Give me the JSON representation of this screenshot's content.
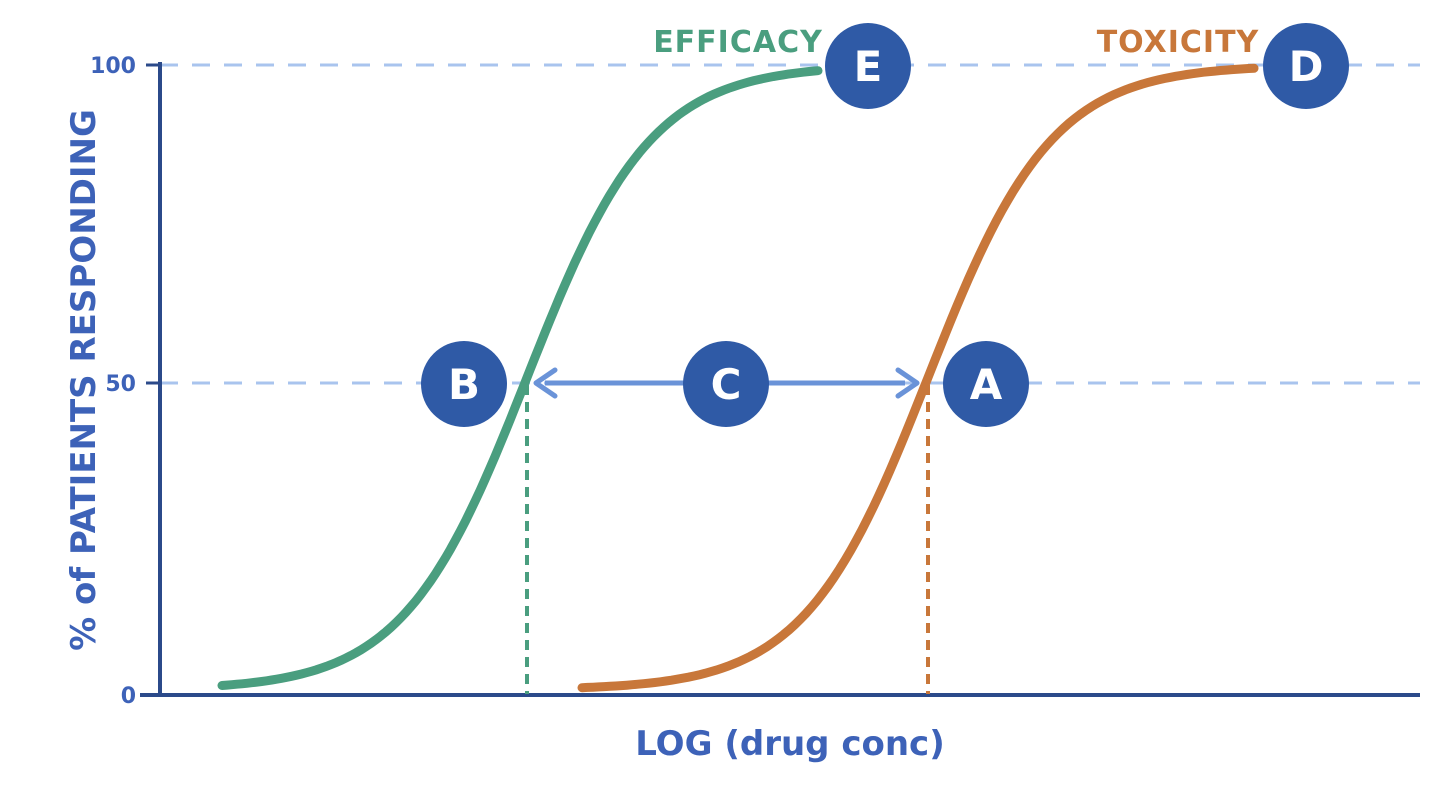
{
  "chart_data": {
    "type": "line",
    "xlabel": "LOG (drug conc)",
    "ylabel": "% of PATIENTS RESPONDING",
    "y_ticks": [
      "0",
      "50",
      "100"
    ],
    "ylim": [
      0,
      100
    ],
    "grid": "dashed horizontal lines at 50 and 100",
    "series": [
      {
        "name": "EFFICACY",
        "color": "#4a9e7f",
        "midpoint_x": 1.0,
        "x_range": [
          0.0,
          2.0
        ]
      },
      {
        "name": "TOXICITY",
        "color": "#c8773a",
        "midpoint_x": 2.3,
        "x_range": [
          1.2,
          3.4
        ]
      }
    ],
    "annotations": {
      "A": "50% point of TOXICITY curve",
      "B": "50% point of EFFICACY curve",
      "C": "arrow between B and A",
      "D": "100% plateau of TOXICITY",
      "E": "100% plateau of EFFICACY"
    },
    "colors": {
      "axis": "#2b4a8a",
      "grid": "#a9c4ee",
      "badge": "#2f5aa6",
      "arrow": "#6a93d8",
      "text": "#3d62b8"
    }
  }
}
